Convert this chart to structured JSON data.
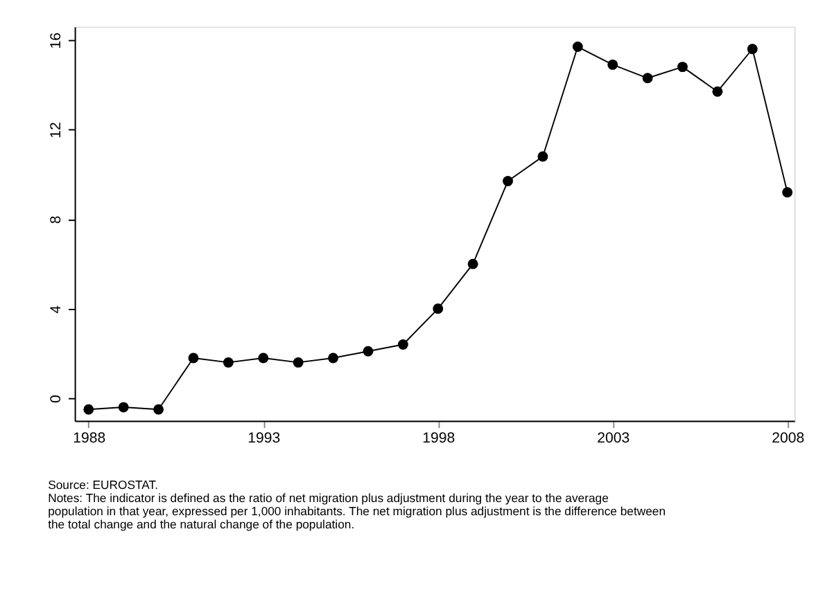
{
  "chart_data": {
    "type": "line",
    "x": [
      1988,
      1989,
      1990,
      1991,
      1992,
      1993,
      1994,
      1995,
      1996,
      1997,
      1998,
      1999,
      2000,
      2001,
      2002,
      2003,
      2004,
      2005,
      2006,
      2007,
      2008
    ],
    "series": [
      {
        "color": "#000000",
        "values": [
          -0.5,
          -0.4,
          -0.5,
          1.8,
          1.6,
          1.8,
          1.6,
          1.8,
          2.1,
          2.4,
          4.0,
          6.0,
          9.7,
          10.8,
          15.7,
          14.9,
          14.3,
          14.8,
          13.7,
          15.6,
          9.2
        ]
      }
    ],
    "xlim": [
      1987.6,
      2008.2
    ],
    "xticks": [
      1988,
      1993,
      1998,
      2003,
      2008
    ],
    "ylim": [
      -1,
      16.6
    ],
    "yticks": [
      0,
      4,
      8,
      12,
      16
    ],
    "marker": "circle",
    "line_style": "solid",
    "grid": false,
    "legend": false,
    "annotations": [
      "Source: EUROSTAT.",
      "Notes: The indicator is defined as the ratio of net migration plus adjustment during the year to the average population in that year, expressed per 1,000 inhabitants. The net migration plus adjustment is the difference between the total change and the natural change of the population."
    ]
  }
}
